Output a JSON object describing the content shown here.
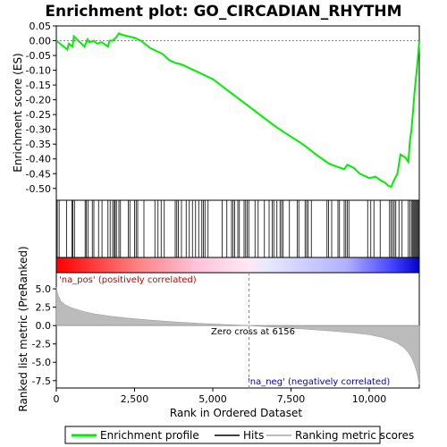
{
  "chart_data": [
    {
      "type": "line",
      "panel": "enrichment-profile",
      "title": "Enrichment plot: GO_CIRCADIAN_RHYTHM",
      "ylabel": "Enrichment score (ES)",
      "xlim": [
        0,
        11600
      ],
      "ylim": [
        -0.54,
        0.05
      ],
      "yticks": [
        0.05,
        0.0,
        -0.05,
        -0.1,
        -0.15,
        -0.2,
        -0.25,
        -0.3,
        -0.35,
        -0.4,
        -0.45,
        -0.5
      ],
      "ytick_labels": [
        "0.05",
        "0.00",
        "-0.05",
        "-0.10",
        "-0.15",
        "-0.20",
        "-0.25",
        "-0.30",
        "-0.35",
        "-0.40",
        "-0.45",
        "-0.50"
      ],
      "color": "#00ee00",
      "x": [
        0,
        350,
        400,
        520,
        560,
        900,
        1000,
        1050,
        1200,
        1300,
        1450,
        1650,
        1700,
        1800,
        1900,
        2000,
        2100,
        2300,
        2500,
        2700,
        3000,
        3200,
        3400,
        3600,
        3800,
        4000,
        4200,
        4500,
        4800,
        5000,
        5500,
        6000,
        6500,
        7000,
        7500,
        7800,
        8000,
        8300,
        8700,
        8800,
        9200,
        9300,
        9500,
        9700,
        10000,
        10200,
        10400,
        10500,
        10600,
        10700,
        10800,
        10900,
        11000,
        11150,
        11250,
        11300,
        11350,
        11400,
        11450,
        11500,
        11550,
        11600
      ],
      "y": [
        0.0,
        -0.03,
        -0.01,
        -0.02,
        0.015,
        -0.02,
        0.005,
        -0.005,
        0.0,
        -0.01,
        -0.005,
        -0.02,
        0.0,
        0.0,
        0.01,
        0.025,
        0.02,
        0.015,
        0.01,
        0.0,
        -0.025,
        -0.035,
        -0.045,
        -0.065,
        -0.075,
        -0.08,
        -0.09,
        -0.105,
        -0.12,
        -0.13,
        -0.17,
        -0.21,
        -0.25,
        -0.29,
        -0.325,
        -0.345,
        -0.36,
        -0.385,
        -0.415,
        -0.42,
        -0.435,
        -0.42,
        -0.43,
        -0.45,
        -0.465,
        -0.46,
        -0.475,
        -0.48,
        -0.49,
        -0.495,
        -0.47,
        -0.45,
        -0.385,
        -0.395,
        -0.41,
        -0.34,
        -0.3,
        -0.24,
        -0.17,
        -0.12,
        -0.065,
        0.0
      ]
    },
    {
      "type": "scatter",
      "panel": "hits",
      "label": "Hits",
      "xlim": [
        0,
        11600
      ],
      "x": [
        30,
        90,
        330,
        500,
        530,
        580,
        920,
        960,
        1010,
        1150,
        1200,
        1350,
        1460,
        1650,
        1720,
        1800,
        1850,
        1880,
        1920,
        2000,
        2050,
        2300,
        2350,
        2500,
        2550,
        2600,
        2800,
        3150,
        3250,
        3350,
        3450,
        3800,
        3850,
        3900,
        4000,
        4150,
        4250,
        4350,
        4450,
        4550,
        4650,
        4700,
        4750,
        4850,
        5300,
        5450,
        5600,
        5650,
        5700,
        5800,
        5850,
        6000,
        6050,
        6100,
        6150,
        6350,
        6450,
        6650,
        6800,
        6900,
        6950,
        7050,
        7150,
        7200,
        7250,
        7450,
        7700,
        7750,
        7950,
        8000,
        8050,
        8150,
        8650,
        8700,
        8800,
        9000,
        9050,
        9200,
        9250,
        9300,
        9350,
        9950,
        10050,
        10150,
        10350,
        10650,
        10700,
        10750,
        10800,
        10850,
        10950,
        11050,
        11250,
        11300,
        11350,
        11380,
        11420,
        11450,
        11480,
        11510,
        11540,
        11570
      ]
    },
    {
      "type": "area",
      "panel": "ranked-list-metric",
      "ylabel": "Ranked list metric (PreRanked)",
      "xlabel": "Rank in Ordered Dataset",
      "xlim": [
        0,
        11600
      ],
      "ylim": [
        -8.5,
        7.2
      ],
      "xticks": [
        0,
        2500,
        5000,
        7500,
        10000
      ],
      "xtick_labels": [
        "0",
        "2,500",
        "5,000",
        "7,500",
        "10,000"
      ],
      "yticks": [
        5.0,
        2.5,
        0.0,
        -2.5,
        -5.0,
        -7.5
      ],
      "ytick_labels": [
        "5.0",
        "2.5",
        "0.0",
        "-2.5",
        "-5.0",
        "-7.5"
      ],
      "x": [
        0,
        50,
        150,
        300,
        500,
        800,
        1200,
        1700,
        2300,
        3000,
        3800,
        4600,
        5300,
        5800,
        6156,
        6600,
        7200,
        8000,
        8800,
        9500,
        10000,
        10400,
        10700,
        10900,
        11100,
        11250,
        11350,
        11450,
        11520,
        11560,
        11600
      ],
      "y": [
        5.2,
        4.2,
        3.3,
        2.8,
        2.4,
        2.0,
        1.6,
        1.3,
        1.0,
        0.75,
        0.5,
        0.3,
        0.15,
        0.07,
        0.0,
        -0.12,
        -0.28,
        -0.5,
        -0.75,
        -1.0,
        -1.25,
        -1.6,
        -2.0,
        -2.4,
        -3.0,
        -3.7,
        -4.4,
        -5.4,
        -6.3,
        -7.2,
        -8.0
      ]
    }
  ],
  "annotations": {
    "pos_label": "'na_pos' (positively correlated)",
    "neg_label": "'na_neg' (negatively correlated)",
    "zero_cross": "Zero cross at 6156",
    "zero_cross_rank": 6156
  },
  "legend": {
    "items": [
      "Enrichment profile",
      "Hits",
      "Ranking metric scores"
    ],
    "colors": [
      "#00ee00",
      "#000000",
      "#bbbbbb"
    ]
  }
}
